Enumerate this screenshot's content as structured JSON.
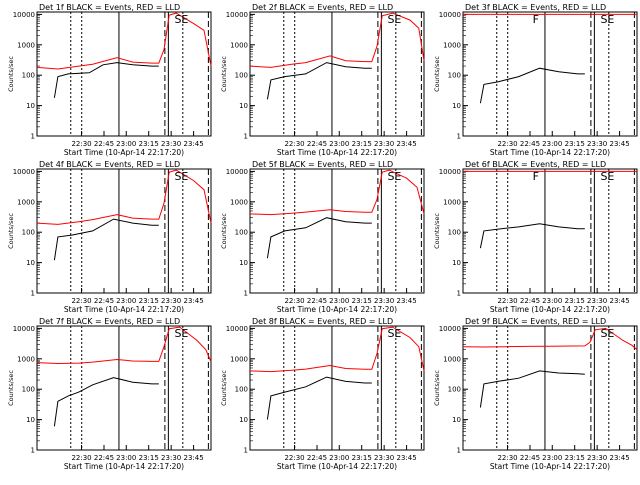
{
  "figure": {
    "background": "#ffffff",
    "event_color": "#000000",
    "lld_color": "#ff0000"
  },
  "chart_data": [
    {
      "type": "line",
      "title": "Det 1f BLACK = Events, RED = LLD",
      "xlabel": "Start Time (10-Apr-14 22:17:20)",
      "ylabel": "Counts/sec",
      "xtick_labels": [
        "22:30",
        "22:45",
        "23:00",
        "23:15",
        "23:30",
        "23:45"
      ],
      "ytick_labels": [
        "1",
        "10",
        "100",
        "1000",
        "10000"
      ],
      "y_scale": "log",
      "ylim": [
        1,
        12000
      ],
      "flags": [
        "SE"
      ],
      "series": [
        {
          "values": [
            [
              0.1,
              18
            ],
            [
              0.12,
              90
            ],
            [
              0.18,
              110
            ],
            [
              0.3,
              120
            ],
            [
              0.38,
              220
            ],
            [
              0.46,
              260
            ],
            [
              0.55,
              220
            ],
            [
              0.66,
              200
            ],
            [
              0.7,
              200
            ]
          ]
        },
        {
          "values": [
            [
              0.0,
              180
            ],
            [
              0.12,
              160
            ],
            [
              0.24,
              200
            ],
            [
              0.32,
              230
            ],
            [
              0.46,
              380
            ],
            [
              0.55,
              270
            ],
            [
              0.66,
              250
            ],
            [
              0.7,
              250
            ],
            [
              0.73,
              700
            ],
            [
              0.76,
              9500
            ],
            [
              0.8,
              11000
            ],
            [
              0.9,
              5000
            ],
            [
              0.96,
              3000
            ],
            [
              1.0,
              200
            ]
          ]
        }
      ]
    },
    {
      "type": "line",
      "title": "Det 2f BLACK = Events, RED = LLD",
      "xlabel": "Start Time (10-Apr-14 22:17:20)",
      "ylabel": "Counts/sec",
      "xtick_labels": [
        "22:30",
        "22:45",
        "23:00",
        "23:15",
        "23:30",
        "23:45"
      ],
      "ytick_labels": [
        "1",
        "10",
        "100",
        "1000",
        "10000"
      ],
      "y_scale": "log",
      "ylim": [
        1,
        12000
      ],
      "flags": [
        "SE"
      ],
      "series": [
        {
          "values": [
            [
              0.1,
              16
            ],
            [
              0.12,
              70
            ],
            [
              0.2,
              90
            ],
            [
              0.32,
              110
            ],
            [
              0.44,
              260
            ],
            [
              0.55,
              190
            ],
            [
              0.66,
              170
            ],
            [
              0.7,
              170
            ]
          ]
        },
        {
          "values": [
            [
              0.0,
              200
            ],
            [
              0.12,
              180
            ],
            [
              0.24,
              230
            ],
            [
              0.32,
              260
            ],
            [
              0.46,
              430
            ],
            [
              0.55,
              300
            ],
            [
              0.66,
              280
            ],
            [
              0.7,
              280
            ],
            [
              0.73,
              900
            ],
            [
              0.76,
              9000
            ],
            [
              0.82,
              11000
            ],
            [
              0.92,
              6500
            ],
            [
              0.97,
              3500
            ],
            [
              1.0,
              300
            ]
          ]
        }
      ]
    },
    {
      "type": "line",
      "title": "Det 3f BLACK = Events, RED = LLD",
      "xlabel": "Start Time (10-Apr-14 22:17:20)",
      "ylabel": "Counts/sec",
      "xtick_labels": [
        "22:30",
        "22:45",
        "23:00",
        "23:15",
        "23:30",
        "23:45"
      ],
      "ytick_labels": [
        "1",
        "10",
        "100",
        "1000",
        "10000"
      ],
      "y_scale": "log",
      "ylim": [
        1,
        12000
      ],
      "flags": [
        "F",
        "SE"
      ],
      "series": [
        {
          "values": [
            [
              0.1,
              12
            ],
            [
              0.12,
              50
            ],
            [
              0.2,
              60
            ],
            [
              0.32,
              90
            ],
            [
              0.44,
              170
            ],
            [
              0.55,
              130
            ],
            [
              0.66,
              110
            ],
            [
              0.7,
              110
            ]
          ]
        },
        {
          "values": [
            [
              0.0,
              10000
            ],
            [
              0.35,
              10000
            ],
            [
              0.7,
              10000
            ],
            [
              0.8,
              10000
            ],
            [
              1.0,
              10000
            ]
          ]
        }
      ]
    },
    {
      "type": "line",
      "title": "Det 4f BLACK = Events, RED = LLD",
      "xlabel": "Start Time (10-Apr-14 22:17:20)",
      "ylabel": "Counts/sec",
      "xtick_labels": [
        "22:30",
        "22:45",
        "23:00",
        "23:15",
        "23:30",
        "23:45"
      ],
      "ytick_labels": [
        "1",
        "10",
        "100",
        "1000",
        "10000"
      ],
      "y_scale": "log",
      "ylim": [
        1,
        12000
      ],
      "flags": [
        "SE"
      ],
      "series": [
        {
          "values": [
            [
              0.1,
              12
            ],
            [
              0.12,
              70
            ],
            [
              0.2,
              80
            ],
            [
              0.32,
              110
            ],
            [
              0.44,
              270
            ],
            [
              0.55,
              200
            ],
            [
              0.66,
              170
            ],
            [
              0.7,
              170
            ]
          ]
        },
        {
          "values": [
            [
              0.0,
              200
            ],
            [
              0.12,
              180
            ],
            [
              0.24,
              220
            ],
            [
              0.32,
              260
            ],
            [
              0.46,
              380
            ],
            [
              0.55,
              290
            ],
            [
              0.66,
              270
            ],
            [
              0.7,
              270
            ],
            [
              0.73,
              900
            ],
            [
              0.76,
              9500
            ],
            [
              0.8,
              11000
            ],
            [
              0.9,
              5000
            ],
            [
              0.96,
              2500
            ],
            [
              1.0,
              200
            ]
          ]
        }
      ]
    },
    {
      "type": "line",
      "title": "Det 5f BLACK = Events, RED = LLD",
      "xlabel": "Start Time (10-Apr-14 22:17:20)",
      "ylabel": "Counts/sec",
      "xtick_labels": [
        "22:30",
        "22:45",
        "23:00",
        "23:15",
        "23:30",
        "23:45"
      ],
      "ytick_labels": [
        "1",
        "10",
        "100",
        "1000",
        "10000"
      ],
      "y_scale": "log",
      "ylim": [
        1,
        12000
      ],
      "flags": [
        "SE"
      ],
      "series": [
        {
          "values": [
            [
              0.1,
              14
            ],
            [
              0.12,
              70
            ],
            [
              0.2,
              110
            ],
            [
              0.32,
              140
            ],
            [
              0.44,
              300
            ],
            [
              0.55,
              220
            ],
            [
              0.66,
              200
            ],
            [
              0.7,
              200
            ]
          ]
        },
        {
          "values": [
            [
              0.0,
              400
            ],
            [
              0.12,
              380
            ],
            [
              0.24,
              420
            ],
            [
              0.32,
              460
            ],
            [
              0.46,
              550
            ],
            [
              0.55,
              480
            ],
            [
              0.66,
              450
            ],
            [
              0.7,
              450
            ],
            [
              0.73,
              1200
            ],
            [
              0.76,
              9500
            ],
            [
              0.8,
              11000
            ],
            [
              0.9,
              6000
            ],
            [
              0.96,
              3000
            ],
            [
              1.0,
              400
            ]
          ]
        }
      ]
    },
    {
      "type": "line",
      "title": "Det 6f BLACK = Events, RED = LLD",
      "xlabel": "Start Time (10-Apr-14 22:17:20)",
      "ylabel": "Counts/sec",
      "xtick_labels": [
        "22:30",
        "22:45",
        "23:00",
        "23:15",
        "23:30",
        "23:45"
      ],
      "ytick_labels": [
        "1",
        "10",
        "100",
        "1000",
        "10000"
      ],
      "y_scale": "log",
      "ylim": [
        1,
        12000
      ],
      "flags": [
        "F",
        "SE"
      ],
      "series": [
        {
          "values": [
            [
              0.1,
              30
            ],
            [
              0.12,
              110
            ],
            [
              0.22,
              130
            ],
            [
              0.32,
              150
            ],
            [
              0.44,
              190
            ],
            [
              0.55,
              150
            ],
            [
              0.66,
              130
            ],
            [
              0.7,
              130
            ]
          ]
        },
        {
          "values": [
            [
              0.0,
              10000
            ],
            [
              0.35,
              10000
            ],
            [
              0.7,
              10000
            ],
            [
              0.8,
              10000
            ],
            [
              1.0,
              10000
            ]
          ]
        }
      ]
    },
    {
      "type": "line",
      "title": "Det 7f BLACK = Events, RED = LLD",
      "xlabel": "Start Time (10-Apr-14 22:17:20)",
      "ylabel": "Counts/sec",
      "xtick_labels": [
        "22:30",
        "22:45",
        "23:00",
        "23:15",
        "23:30",
        "23:45"
      ],
      "ytick_labels": [
        "1",
        "10",
        "100",
        "1000",
        "10000"
      ],
      "y_scale": "log",
      "ylim": [
        1,
        12000
      ],
      "flags": [
        "SE"
      ],
      "series": [
        {
          "values": [
            [
              0.1,
              6
            ],
            [
              0.12,
              40
            ],
            [
              0.18,
              60
            ],
            [
              0.24,
              80
            ],
            [
              0.32,
              140
            ],
            [
              0.44,
              240
            ],
            [
              0.55,
              170
            ],
            [
              0.66,
              150
            ],
            [
              0.7,
              150
            ]
          ]
        },
        {
          "values": [
            [
              0.0,
              750
            ],
            [
              0.12,
              700
            ],
            [
              0.24,
              720
            ],
            [
              0.32,
              780
            ],
            [
              0.46,
              950
            ],
            [
              0.55,
              850
            ],
            [
              0.66,
              820
            ],
            [
              0.7,
              820
            ],
            [
              0.73,
              2500
            ],
            [
              0.76,
              9800
            ],
            [
              0.82,
              11000
            ],
            [
              0.92,
              4000
            ],
            [
              0.97,
              2000
            ],
            [
              1.0,
              800
            ]
          ]
        }
      ]
    },
    {
      "type": "line",
      "title": "Det 8f BLACK = Events, RED = LLD",
      "xlabel": "Start Time (10-Apr-14 22:17:20)",
      "ylabel": "Counts/sec",
      "xtick_labels": [
        "22:30",
        "22:45",
        "23:00",
        "23:15",
        "23:30",
        "23:45"
      ],
      "ytick_labels": [
        "1",
        "10",
        "100",
        "1000",
        "10000"
      ],
      "y_scale": "log",
      "ylim": [
        1,
        12000
      ],
      "flags": [
        "SE"
      ],
      "series": [
        {
          "values": [
            [
              0.1,
              10
            ],
            [
              0.12,
              60
            ],
            [
              0.2,
              80
            ],
            [
              0.32,
              120
            ],
            [
              0.44,
              250
            ],
            [
              0.55,
              180
            ],
            [
              0.66,
              160
            ],
            [
              0.7,
              160
            ]
          ]
        },
        {
          "values": [
            [
              0.0,
              400
            ],
            [
              0.12,
              380
            ],
            [
              0.24,
              420
            ],
            [
              0.32,
              460
            ],
            [
              0.46,
              600
            ],
            [
              0.55,
              480
            ],
            [
              0.66,
              450
            ],
            [
              0.7,
              450
            ],
            [
              0.73,
              1500
            ],
            [
              0.76,
              9800
            ],
            [
              0.82,
              11000
            ],
            [
              0.92,
              5000
            ],
            [
              0.97,
              2500
            ],
            [
              1.0,
              400
            ]
          ]
        }
      ]
    },
    {
      "type": "line",
      "title": "Det 9f BLACK = Events, RED = LLD",
      "xlabel": "Start Time (10-Apr-14 22:17:20)",
      "ylabel": "Counts/sec",
      "xtick_labels": [
        "22:30",
        "22:45",
        "23:00",
        "23:15",
        "23:30",
        "23:45"
      ],
      "ytick_labels": [
        "1",
        "10",
        "100",
        "1000",
        "10000"
      ],
      "y_scale": "log",
      "ylim": [
        1,
        12000
      ],
      "flags": [
        "SE"
      ],
      "series": [
        {
          "values": [
            [
              0.1,
              25
            ],
            [
              0.12,
              150
            ],
            [
              0.2,
              180
            ],
            [
              0.32,
              230
            ],
            [
              0.44,
              400
            ],
            [
              0.55,
              340
            ],
            [
              0.66,
              320
            ],
            [
              0.7,
              310
            ]
          ]
        },
        {
          "values": [
            [
              0.0,
              2500
            ],
            [
              0.12,
              2450
            ],
            [
              0.24,
              2500
            ],
            [
              0.36,
              2550
            ],
            [
              0.5,
              2600
            ],
            [
              0.7,
              2650
            ],
            [
              0.73,
              3500
            ],
            [
              0.76,
              9000
            ],
            [
              0.82,
              10000
            ],
            [
              0.92,
              4000
            ],
            [
              0.97,
              2800
            ],
            [
              1.0,
              2000
            ]
          ]
        }
      ]
    }
  ]
}
